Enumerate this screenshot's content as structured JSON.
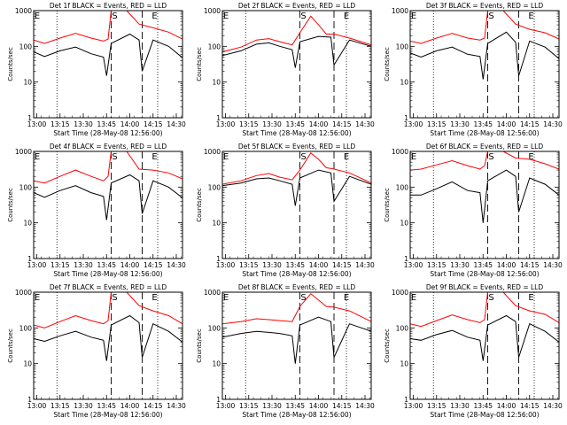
{
  "figure": {
    "ylabel": "Counts/sec",
    "xlabel": "Start Time (28-May-08 12:56:00)",
    "yticks": [
      "1",
      "10",
      "100",
      "1000"
    ],
    "xticks": [
      "13:00",
      "13:15",
      "13:30",
      "13:45",
      "14:00",
      "14:15",
      "14:30"
    ],
    "marker_labels": [
      "E",
      "S",
      "E"
    ],
    "colors": {
      "events": "#000000",
      "lld": "#ff0000",
      "axes": "#000000",
      "background": "#ffffff"
    }
  },
  "chart_data": [
    {
      "type": "line",
      "title": "Det 1f BLACK = Events, RED = LLD",
      "ylim": [
        1,
        1000
      ],
      "ylog": true,
      "xlim": [
        "12:58",
        "14:34"
      ],
      "dotted_lines": [
        "13:13",
        "14:18"
      ],
      "dashed_lines": [
        "13:48",
        "14:08"
      ],
      "series": [
        {
          "name": "Events",
          "color": "#000000",
          "x": [
            "12:58",
            "13:05",
            "13:15",
            "13:25",
            "13:35",
            "13:43",
            "13:45",
            "13:48",
            "14:00",
            "14:06",
            "14:08",
            "14:15",
            "14:25",
            "14:34"
          ],
          "values": [
            70,
            52,
            75,
            95,
            62,
            50,
            15,
            120,
            220,
            150,
            20,
            150,
            100,
            48
          ]
        },
        {
          "name": "LLD",
          "color": "#ff0000",
          "x": [
            "12:58",
            "13:05",
            "13:15",
            "13:25",
            "13:35",
            "13:43",
            "13:46",
            "13:48",
            "13:58",
            "14:06",
            "14:15",
            "14:25",
            "14:34"
          ],
          "values": [
            150,
            120,
            170,
            230,
            170,
            140,
            160,
            1000,
            1000,
            420,
            330,
            250,
            160
          ]
        }
      ]
    },
    {
      "type": "line",
      "title": "Det 2f BLACK = Events, RED = LLD",
      "ylim": [
        1,
        1000
      ],
      "ylog": true,
      "xlim": [
        "12:58",
        "14:34"
      ],
      "dotted_lines": [
        "13:13",
        "14:18"
      ],
      "dashed_lines": [
        "13:48",
        "14:10"
      ],
      "series": [
        {
          "name": "Events",
          "color": "#000000",
          "x": [
            "12:58",
            "13:10",
            "13:20",
            "13:28",
            "13:35",
            "13:43",
            "13:45",
            "13:48",
            "14:00",
            "14:08",
            "14:10",
            "14:20",
            "14:34"
          ],
          "values": [
            55,
            75,
            115,
            125,
            100,
            80,
            25,
            135,
            190,
            180,
            30,
            150,
            100
          ]
        },
        {
          "name": "LLD",
          "color": "#ff0000",
          "x": [
            "12:58",
            "13:10",
            "13:20",
            "13:28",
            "13:35",
            "13:43",
            "13:48",
            "13:55",
            "14:00",
            "14:05",
            "14:10",
            "14:20",
            "14:34"
          ],
          "values": [
            70,
            95,
            150,
            165,
            135,
            110,
            240,
            700,
            400,
            220,
            220,
            170,
            110
          ]
        }
      ]
    },
    {
      "type": "line",
      "title": "Det 3f BLACK = Events, RED = LLD",
      "ylim": [
        1,
        1000
      ],
      "ylog": true,
      "xlim": [
        "12:58",
        "14:34"
      ],
      "dotted_lines": [
        "13:13",
        "14:18"
      ],
      "dashed_lines": [
        "13:48",
        "14:08"
      ],
      "series": [
        {
          "name": "Events",
          "color": "#000000",
          "x": [
            "12:58",
            "13:05",
            "13:15",
            "13:25",
            "13:35",
            "13:43",
            "13:45",
            "13:48",
            "14:00",
            "14:06",
            "14:08",
            "14:15",
            "14:25",
            "14:34"
          ],
          "values": [
            65,
            50,
            75,
            95,
            60,
            52,
            12,
            120,
            250,
            130,
            15,
            140,
            95,
            45
          ]
        },
        {
          "name": "LLD",
          "color": "#ff0000",
          "x": [
            "12:58",
            "13:05",
            "13:15",
            "13:25",
            "13:35",
            "13:43",
            "13:46",
            "13:48",
            "13:58",
            "14:06",
            "14:15",
            "14:25",
            "14:34"
          ],
          "values": [
            140,
            120,
            170,
            230,
            170,
            150,
            170,
            1000,
            1000,
            420,
            300,
            240,
            160
          ]
        }
      ]
    },
    {
      "type": "line",
      "title": "Det 4f BLACK = Events, RED = LLD",
      "ylim": [
        1,
        1000
      ],
      "ylog": true,
      "xlim": [
        "12:58",
        "14:34"
      ],
      "dotted_lines": [
        "13:13",
        "14:18"
      ],
      "dashed_lines": [
        "13:48",
        "14:08"
      ],
      "series": [
        {
          "name": "Events",
          "color": "#000000",
          "x": [
            "12:58",
            "13:05",
            "13:15",
            "13:25",
            "13:35",
            "13:43",
            "13:45",
            "13:48",
            "14:00",
            "14:06",
            "14:08",
            "14:15",
            "14:25",
            "14:34"
          ],
          "values": [
            70,
            52,
            80,
            110,
            70,
            55,
            12,
            130,
            220,
            150,
            18,
            150,
            100,
            50
          ]
        },
        {
          "name": "LLD",
          "color": "#ff0000",
          "x": [
            "12:58",
            "13:05",
            "13:15",
            "13:25",
            "13:35",
            "13:43",
            "13:46",
            "13:48",
            "13:58",
            "14:06",
            "14:15",
            "14:25",
            "14:34"
          ],
          "values": [
            150,
            130,
            200,
            300,
            200,
            150,
            200,
            1000,
            1000,
            320,
            300,
            250,
            170
          ]
        }
      ]
    },
    {
      "type": "line",
      "title": "Det 5f BLACK = Events, RED = LLD",
      "ylim": [
        1,
        1000
      ],
      "ylog": true,
      "xlim": [
        "12:58",
        "14:34"
      ],
      "dotted_lines": [
        "13:13",
        "14:18"
      ],
      "dashed_lines": [
        "13:48",
        "14:10"
      ],
      "series": [
        {
          "name": "Events",
          "color": "#000000",
          "x": [
            "12:58",
            "13:10",
            "13:20",
            "13:28",
            "13:35",
            "13:43",
            "13:45",
            "13:48",
            "14:00",
            "14:08",
            "14:10",
            "14:20",
            "14:34"
          ],
          "values": [
            110,
            130,
            170,
            180,
            150,
            120,
            30,
            180,
            300,
            250,
            40,
            200,
            120
          ]
        },
        {
          "name": "LLD",
          "color": "#ff0000",
          "x": [
            "12:58",
            "13:10",
            "13:20",
            "13:28",
            "13:35",
            "13:43",
            "13:48",
            "13:55",
            "14:00",
            "14:05",
            "14:10",
            "14:20",
            "14:34"
          ],
          "values": [
            120,
            150,
            210,
            240,
            190,
            160,
            300,
            900,
            600,
            350,
            320,
            250,
            130
          ]
        }
      ]
    },
    {
      "type": "line",
      "title": "Det 6f BLACK = Events, RED = LLD",
      "ylim": [
        1,
        1000
      ],
      "ylog": true,
      "xlim": [
        "12:58",
        "14:34"
      ],
      "dotted_lines": [
        "13:13",
        "14:18"
      ],
      "dashed_lines": [
        "13:48",
        "14:08"
      ],
      "series": [
        {
          "name": "Events",
          "color": "#000000",
          "x": [
            "12:58",
            "13:05",
            "13:15",
            "13:25",
            "13:35",
            "13:43",
            "13:45",
            "13:48",
            "14:00",
            "14:06",
            "14:08",
            "14:15",
            "14:25",
            "14:34"
          ],
          "values": [
            60,
            60,
            90,
            140,
            80,
            70,
            10,
            150,
            300,
            200,
            20,
            180,
            120,
            60
          ]
        },
        {
          "name": "LLD",
          "color": "#ff0000",
          "x": [
            "12:58",
            "13:05",
            "13:15",
            "13:25",
            "13:35",
            "13:43",
            "13:46",
            "13:48",
            "13:58",
            "14:06",
            "14:15",
            "14:25",
            "14:34"
          ],
          "values": [
            300,
            320,
            420,
            550,
            400,
            320,
            400,
            1000,
            1000,
            650,
            600,
            450,
            320
          ]
        }
      ]
    },
    {
      "type": "line",
      "title": "Det 7f BLACK = Events, RED = LLD",
      "ylim": [
        1,
        1000
      ],
      "ylog": true,
      "xlim": [
        "12:58",
        "14:34"
      ],
      "dotted_lines": [
        "13:13",
        "14:18"
      ],
      "dashed_lines": [
        "13:48",
        "14:08"
      ],
      "series": [
        {
          "name": "Events",
          "color": "#000000",
          "x": [
            "12:58",
            "13:05",
            "13:15",
            "13:25",
            "13:35",
            "13:43",
            "13:45",
            "13:48",
            "14:00",
            "14:06",
            "14:08",
            "14:15",
            "14:25",
            "14:34"
          ],
          "values": [
            50,
            42,
            60,
            80,
            55,
            45,
            12,
            120,
            220,
            140,
            15,
            130,
            80,
            40
          ]
        },
        {
          "name": "LLD",
          "color": "#ff0000",
          "x": [
            "12:58",
            "13:05",
            "13:15",
            "13:25",
            "13:35",
            "13:43",
            "13:46",
            "13:48",
            "13:58",
            "14:06",
            "14:15",
            "14:25",
            "14:34"
          ],
          "values": [
            120,
            100,
            150,
            220,
            160,
            130,
            160,
            1000,
            1000,
            420,
            300,
            220,
            130
          ]
        }
      ]
    },
    {
      "type": "line",
      "title": "Det 8f BLACK = Events, RED = LLD",
      "ylim": [
        1,
        1000
      ],
      "ylog": true,
      "xlim": [
        "12:58",
        "14:34"
      ],
      "dotted_lines": [
        "13:13",
        "14:18"
      ],
      "dashed_lines": [
        "13:48",
        "14:10"
      ],
      "series": [
        {
          "name": "Events",
          "color": "#000000",
          "x": [
            "12:58",
            "13:10",
            "13:20",
            "13:28",
            "13:35",
            "13:43",
            "13:45",
            "13:48",
            "14:00",
            "14:08",
            "14:10",
            "14:20",
            "14:34"
          ],
          "values": [
            55,
            70,
            80,
            75,
            70,
            60,
            10,
            120,
            200,
            150,
            15,
            130,
            80
          ]
        },
        {
          "name": "LLD",
          "color": "#ff0000",
          "x": [
            "12:58",
            "13:10",
            "13:20",
            "13:28",
            "13:35",
            "13:43",
            "13:48",
            "13:55",
            "14:00",
            "14:05",
            "14:10",
            "14:20",
            "14:34"
          ],
          "values": [
            130,
            150,
            180,
            170,
            160,
            150,
            400,
            900,
            600,
            400,
            380,
            300,
            150
          ]
        }
      ]
    },
    {
      "type": "line",
      "title": "Det 9f BLACK = Events, RED = LLD",
      "ylim": [
        1,
        1000
      ],
      "ylog": true,
      "xlim": [
        "12:58",
        "14:34"
      ],
      "dotted_lines": [
        "13:13",
        "14:18"
      ],
      "dashed_lines": [
        "13:48",
        "14:08"
      ],
      "series": [
        {
          "name": "Events",
          "color": "#000000",
          "x": [
            "12:58",
            "13:05",
            "13:15",
            "13:25",
            "13:35",
            "13:43",
            "13:45",
            "13:48",
            "14:00",
            "14:06",
            "14:08",
            "14:15",
            "14:25",
            "14:34"
          ],
          "values": [
            50,
            45,
            65,
            85,
            55,
            45,
            12,
            120,
            220,
            150,
            15,
            130,
            80,
            40
          ]
        },
        {
          "name": "LLD",
          "color": "#ff0000",
          "x": [
            "12:58",
            "13:05",
            "13:15",
            "13:25",
            "13:35",
            "13:43",
            "13:46",
            "13:48",
            "13:58",
            "14:06",
            "14:15",
            "14:25",
            "14:34"
          ],
          "values": [
            130,
            110,
            160,
            230,
            170,
            140,
            170,
            1000,
            1000,
            420,
            300,
            240,
            140
          ]
        }
      ]
    }
  ]
}
